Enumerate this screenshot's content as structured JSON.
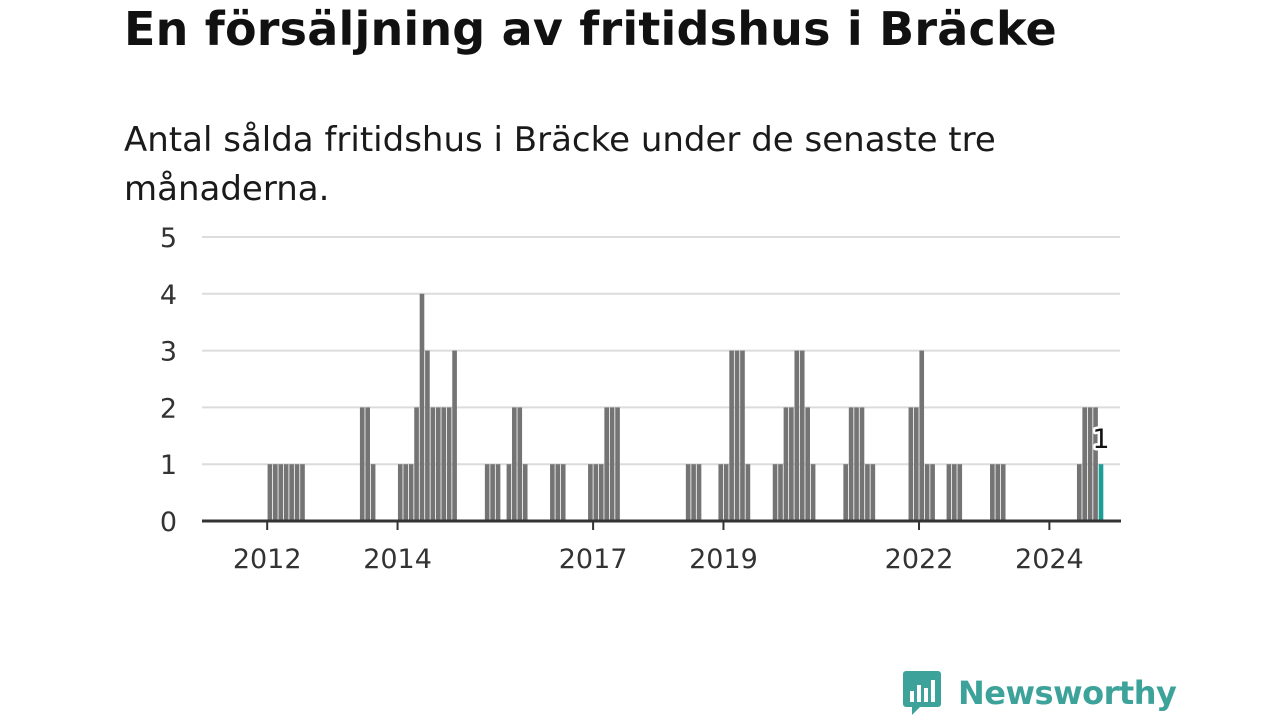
{
  "title": "En försäljning av fritidshus i Bräcke",
  "subtitle": "Antal sålda fritidshus i Bräcke under de senaste tre månaderna.",
  "brand": {
    "name": "Newsworthy",
    "logo_icon": "bar-chart-speech-bubble-icon"
  },
  "colors": {
    "bar": "#747474",
    "highlight": "#1a9e96",
    "grid": "#dcdcdc",
    "axis": "#333333",
    "brand": "#3da39a"
  },
  "chart_data": {
    "type": "bar",
    "ylim": [
      0,
      5
    ],
    "yticks": [
      0,
      1,
      2,
      3,
      4,
      5
    ],
    "xticks": [
      {
        "label": "2012",
        "year": 2012
      },
      {
        "label": "2014",
        "year": 2014
      },
      {
        "label": "2017",
        "year": 2017
      },
      {
        "label": "2019",
        "year": 2019
      },
      {
        "label": "2022",
        "year": 2022
      },
      {
        "label": "2024",
        "year": 2024
      }
    ],
    "x_range": [
      "2011-07",
      "2025-08"
    ],
    "grid": true,
    "highlight": {
      "date": "2025-04",
      "value": 1,
      "label": "1"
    },
    "series": [
      {
        "values": [
          {
            "date": "2012-07",
            "value": 1
          },
          {
            "date": "2012-08",
            "value": 1
          },
          {
            "date": "2012-09",
            "value": 1
          },
          {
            "date": "2012-10",
            "value": 1
          },
          {
            "date": "2012-11",
            "value": 1
          },
          {
            "date": "2012-12",
            "value": 1
          },
          {
            "date": "2013-01",
            "value": 1
          },
          {
            "date": "2013-12",
            "value": 2
          },
          {
            "date": "2014-01",
            "value": 2
          },
          {
            "date": "2014-02",
            "value": 1
          },
          {
            "date": "2014-07",
            "value": 1
          },
          {
            "date": "2014-08",
            "value": 1
          },
          {
            "date": "2014-09",
            "value": 1
          },
          {
            "date": "2014-10",
            "value": 2
          },
          {
            "date": "2014-11",
            "value": 4
          },
          {
            "date": "2014-12",
            "value": 3
          },
          {
            "date": "2015-01",
            "value": 2
          },
          {
            "date": "2015-02",
            "value": 2
          },
          {
            "date": "2015-03",
            "value": 2
          },
          {
            "date": "2015-04",
            "value": 2
          },
          {
            "date": "2015-05",
            "value": 3
          },
          {
            "date": "2015-11",
            "value": 1
          },
          {
            "date": "2015-12",
            "value": 1
          },
          {
            "date": "2016-01",
            "value": 1
          },
          {
            "date": "2016-03",
            "value": 1
          },
          {
            "date": "2016-04",
            "value": 2
          },
          {
            "date": "2016-05",
            "value": 2
          },
          {
            "date": "2016-06",
            "value": 1
          },
          {
            "date": "2016-11",
            "value": 1
          },
          {
            "date": "2016-12",
            "value": 1
          },
          {
            "date": "2017-01",
            "value": 1
          },
          {
            "date": "2017-06",
            "value": 1
          },
          {
            "date": "2017-07",
            "value": 1
          },
          {
            "date": "2017-08",
            "value": 1
          },
          {
            "date": "2017-09",
            "value": 2
          },
          {
            "date": "2017-10",
            "value": 2
          },
          {
            "date": "2017-11",
            "value": 2
          },
          {
            "date": "2018-12",
            "value": 1
          },
          {
            "date": "2019-01",
            "value": 1
          },
          {
            "date": "2019-02",
            "value": 1
          },
          {
            "date": "2019-06",
            "value": 1
          },
          {
            "date": "2019-07",
            "value": 1
          },
          {
            "date": "2019-08",
            "value": 3
          },
          {
            "date": "2019-09",
            "value": 3
          },
          {
            "date": "2019-10",
            "value": 3
          },
          {
            "date": "2019-11",
            "value": 1
          },
          {
            "date": "2020-04",
            "value": 1
          },
          {
            "date": "2020-05",
            "value": 1
          },
          {
            "date": "2020-06",
            "value": 2
          },
          {
            "date": "2020-07",
            "value": 2
          },
          {
            "date": "2020-08",
            "value": 3
          },
          {
            "date": "2020-09",
            "value": 3
          },
          {
            "date": "2020-10",
            "value": 2
          },
          {
            "date": "2020-11",
            "value": 1
          },
          {
            "date": "2021-05",
            "value": 1
          },
          {
            "date": "2021-06",
            "value": 2
          },
          {
            "date": "2021-07",
            "value": 2
          },
          {
            "date": "2021-08",
            "value": 2
          },
          {
            "date": "2021-09",
            "value": 1
          },
          {
            "date": "2021-10",
            "value": 1
          },
          {
            "date": "2022-05",
            "value": 2
          },
          {
            "date": "2022-06",
            "value": 2
          },
          {
            "date": "2022-07",
            "value": 3
          },
          {
            "date": "2022-08",
            "value": 1
          },
          {
            "date": "2022-09",
            "value": 1
          },
          {
            "date": "2022-12",
            "value": 1
          },
          {
            "date": "2023-01",
            "value": 1
          },
          {
            "date": "2023-02",
            "value": 1
          },
          {
            "date": "2023-08",
            "value": 1
          },
          {
            "date": "2023-09",
            "value": 1
          },
          {
            "date": "2023-10",
            "value": 1
          },
          {
            "date": "2024-12",
            "value": 1
          },
          {
            "date": "2025-01",
            "value": 2
          },
          {
            "date": "2025-02",
            "value": 2
          },
          {
            "date": "2025-03",
            "value": 2
          },
          {
            "date": "2025-04",
            "value": 1
          }
        ]
      }
    ]
  }
}
